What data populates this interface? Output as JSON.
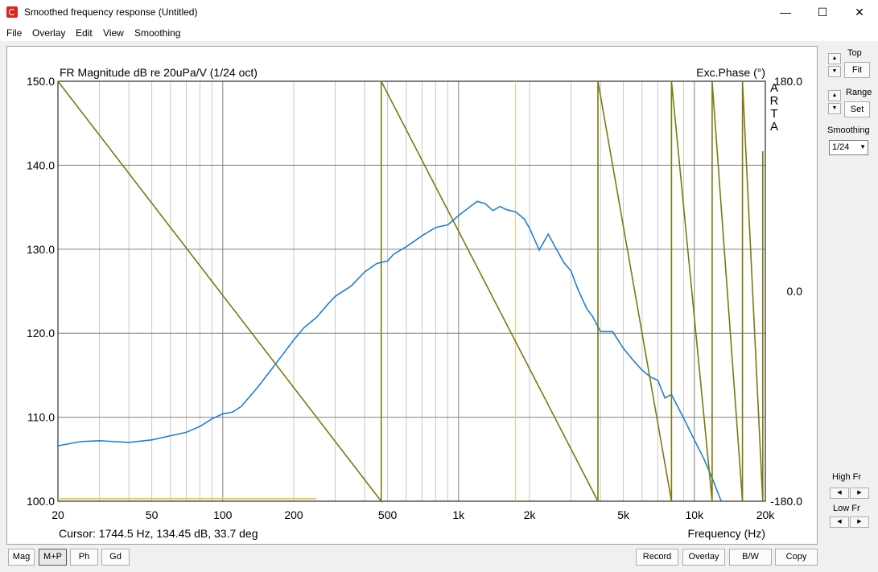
{
  "window": {
    "title": "Smoothed frequency response (Untitled)",
    "minimize_glyph": "—",
    "maximize_glyph": "☐",
    "close_glyph": "✕"
  },
  "menu": [
    "File",
    "Overlay",
    "Edit",
    "View",
    "Smoothing"
  ],
  "plot": {
    "title_left": "FR Magnitude dB re 20uPa/V (1/24 oct)",
    "title_right": "Exc.Phase (°)",
    "brand": [
      "A",
      "R",
      "T",
      "A"
    ],
    "cursor_text": "Cursor: 1744.5 Hz, 134.45 dB, 33.7 deg",
    "xlabel": "Frequency (Hz)"
  },
  "side": {
    "top_label": "Top",
    "fit_label": "Fit",
    "range_label": "Range",
    "set_label": "Set",
    "smoothing_label": "Smoothing",
    "smoothing_value": "1/24",
    "high_fr_label": "High Fr",
    "low_fr_label": "Low Fr",
    "up_glyph": "▲",
    "down_glyph": "▼",
    "left_glyph": "◀",
    "right_glyph": "▶"
  },
  "bottom_left_buttons": [
    "Mag",
    "M+P",
    "Ph",
    "Gd"
  ],
  "bottom_right_buttons": [
    "Record",
    "Overlay",
    "B/W",
    "Copy"
  ],
  "colors": {
    "magnitude": "#1f7fd6",
    "phase": "#7a7a10",
    "cursor": "#e0d060",
    "grid_major": "#808080",
    "grid_minor": "#c8c8c8"
  },
  "chart_data": {
    "type": "line",
    "title": "FR Magnitude dB re 20uPa/V (1/24 oct)",
    "xlabel": "Frequency (Hz)",
    "ylabel": "FR Magnitude dB re 20uPa/V",
    "y2label": "Exc.Phase (°)",
    "xscale": "log",
    "xlim": [
      20,
      20000
    ],
    "ylim": [
      100,
      150
    ],
    "y2lim": [
      -180,
      180
    ],
    "x_ticks": [
      {
        "v": 20,
        "label": "20"
      },
      {
        "v": 50,
        "label": "50"
      },
      {
        "v": 100,
        "label": "100"
      },
      {
        "v": 200,
        "label": "200"
      },
      {
        "v": 500,
        "label": "500"
      },
      {
        "v": 1000,
        "label": "1k"
      },
      {
        "v": 2000,
        "label": "2k"
      },
      {
        "v": 5000,
        "label": "5k"
      },
      {
        "v": 10000,
        "label": "10k"
      },
      {
        "v": 20000,
        "label": "20k"
      }
    ],
    "y_ticks": [
      "150.0",
      "140.0",
      "130.0",
      "120.0",
      "110.0",
      "100.0"
    ],
    "y2_ticks": [
      {
        "v": 180,
        "label": "180.0"
      },
      {
        "v": 0,
        "label": "0.0"
      },
      {
        "v": -180,
        "label": "-180.0"
      }
    ],
    "cursor_x": 1744.5,
    "series": [
      {
        "axis": "left",
        "points": [
          [
            20,
            106.6
          ],
          [
            25,
            107.1
          ],
          [
            30,
            107.2
          ],
          [
            40,
            107.0
          ],
          [
            50,
            107.3
          ],
          [
            60,
            107.8
          ],
          [
            70,
            108.2
          ],
          [
            80,
            108.9
          ],
          [
            90,
            109.8
          ],
          [
            100,
            110.4
          ],
          [
            110,
            110.6
          ],
          [
            120,
            111.3
          ],
          [
            140,
            113.5
          ],
          [
            160,
            115.6
          ],
          [
            180,
            117.5
          ],
          [
            200,
            119.2
          ],
          [
            220,
            120.6
          ],
          [
            250,
            121.9
          ],
          [
            280,
            123.5
          ],
          [
            300,
            124.4
          ],
          [
            350,
            125.6
          ],
          [
            400,
            127.3
          ],
          [
            450,
            128.3
          ],
          [
            500,
            128.6
          ],
          [
            530,
            129.4
          ],
          [
            600,
            130.3
          ],
          [
            700,
            131.6
          ],
          [
            800,
            132.6
          ],
          [
            900,
            132.9
          ],
          [
            1000,
            134.0
          ],
          [
            1100,
            134.9
          ],
          [
            1200,
            135.7
          ],
          [
            1300,
            135.4
          ],
          [
            1400,
            134.6
          ],
          [
            1500,
            135.1
          ],
          [
            1600,
            134.7
          ],
          [
            1744.5,
            134.45
          ],
          [
            1900,
            133.6
          ],
          [
            2000,
            132.5
          ],
          [
            2200,
            129.9
          ],
          [
            2400,
            131.8
          ],
          [
            2600,
            130.0
          ],
          [
            2800,
            128.4
          ],
          [
            3000,
            127.4
          ],
          [
            3200,
            125.3
          ],
          [
            3500,
            122.9
          ],
          [
            3700,
            122.0
          ],
          [
            4000,
            120.2
          ],
          [
            4500,
            120.2
          ],
          [
            5000,
            118.2
          ],
          [
            5500,
            116.8
          ],
          [
            6000,
            115.6
          ],
          [
            6500,
            114.8
          ],
          [
            7000,
            114.4
          ],
          [
            7500,
            112.3
          ],
          [
            8000,
            112.7
          ],
          [
            9000,
            109.9
          ],
          [
            10000,
            107.3
          ],
          [
            11000,
            105.0
          ],
          [
            12000,
            102.5
          ],
          [
            13000,
            99.8
          ]
        ]
      },
      {
        "axis": "right",
        "points": [
          [
            20,
            180
          ],
          [
            470,
            -180
          ],
          [
            470.1,
            180
          ],
          [
            3900,
            -180
          ],
          [
            3900.1,
            180
          ],
          [
            8000,
            -180
          ],
          [
            8000.1,
            180
          ],
          [
            11900,
            -180
          ],
          [
            11900.1,
            180
          ],
          [
            16000,
            -180
          ],
          [
            16000.1,
            180
          ],
          [
            19500,
            -180
          ],
          [
            19500.1,
            120
          ]
        ]
      },
      {
        "axis": "left",
        "points": [
          [
            20,
            100.3
          ],
          [
            250,
            100.3
          ]
        ]
      }
    ]
  }
}
